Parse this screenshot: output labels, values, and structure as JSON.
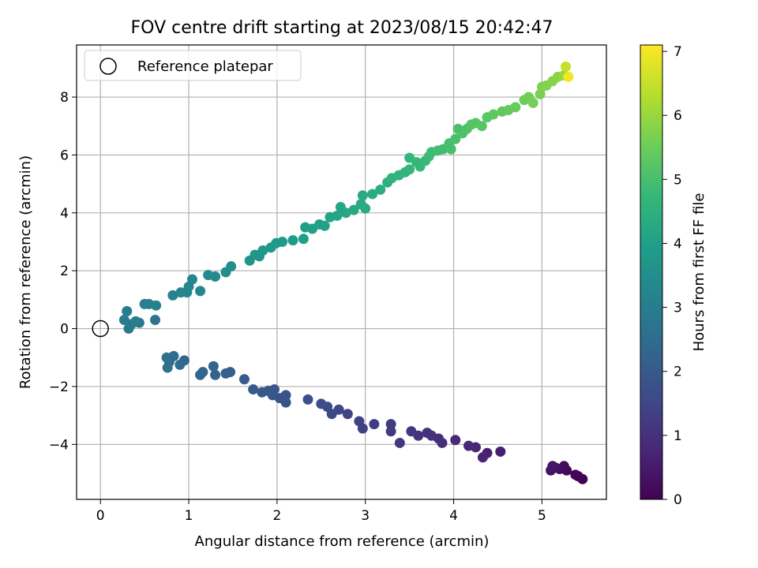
{
  "chart_data": {
    "type": "scatter",
    "title": "FOV centre drift starting at 2023/08/15 20:42:47",
    "xlabel": "Angular distance from reference (arcmin)",
    "ylabel": "Rotation from reference (arcmin)",
    "xlim": [
      -0.27,
      5.73
    ],
    "ylim": [
      -5.9,
      9.8
    ],
    "xticks": [
      0,
      1,
      2,
      3,
      4,
      5
    ],
    "yticks": [
      -4,
      -2,
      0,
      2,
      4,
      6,
      8
    ],
    "grid": true,
    "legend": {
      "placement": "top-left",
      "entries": [
        "Reference platepar"
      ]
    },
    "reference_point": {
      "x": 0,
      "y": 0
    },
    "colorbar": {
      "label": "Hours from first FF file",
      "min": 0,
      "max": 7.1,
      "ticks": [
        0,
        1,
        2,
        3,
        4,
        5,
        6,
        7
      ],
      "colormap": "viridis"
    },
    "series": [
      {
        "points": [
          {
            "x": 5.46,
            "y": -5.2,
            "c": 0.0
          },
          {
            "x": 5.41,
            "y": -5.1,
            "c": 0.05
          },
          {
            "x": 5.38,
            "y": -5.05,
            "c": 0.1
          },
          {
            "x": 5.28,
            "y": -4.9,
            "c": 0.15
          },
          {
            "x": 5.25,
            "y": -4.75,
            "c": 0.2
          },
          {
            "x": 5.2,
            "y": -4.85,
            "c": 0.25
          },
          {
            "x": 5.15,
            "y": -4.8,
            "c": 0.3
          },
          {
            "x": 5.1,
            "y": -4.9,
            "c": 0.35
          },
          {
            "x": 5.12,
            "y": -4.75,
            "c": 0.4
          },
          {
            "x": 4.53,
            "y": -4.25,
            "c": 0.6
          },
          {
            "x": 4.38,
            "y": -4.3,
            "c": 0.65
          },
          {
            "x": 4.33,
            "y": -4.45,
            "c": 0.7
          },
          {
            "x": 4.25,
            "y": -4.1,
            "c": 0.75
          },
          {
            "x": 4.17,
            "y": -4.05,
            "c": 0.8
          },
          {
            "x": 4.02,
            "y": -3.85,
            "c": 0.85
          },
          {
            "x": 3.87,
            "y": -3.95,
            "c": 0.9
          },
          {
            "x": 3.83,
            "y": -3.8,
            "c": 0.95
          },
          {
            "x": 3.75,
            "y": -3.7,
            "c": 1.0
          },
          {
            "x": 3.7,
            "y": -3.6,
            "c": 1.02
          },
          {
            "x": 3.6,
            "y": -3.7,
            "c": 1.05
          },
          {
            "x": 3.52,
            "y": -3.55,
            "c": 1.1
          },
          {
            "x": 3.39,
            "y": -3.95,
            "c": 1.15
          },
          {
            "x": 3.29,
            "y": -3.55,
            "c": 1.2
          },
          {
            "x": 3.29,
            "y": -3.3,
            "c": 1.25
          },
          {
            "x": 3.1,
            "y": -3.3,
            "c": 1.3
          },
          {
            "x": 2.97,
            "y": -3.45,
            "c": 1.35
          },
          {
            "x": 2.93,
            "y": -3.2,
            "c": 1.4
          },
          {
            "x": 2.8,
            "y": -2.95,
            "c": 1.45
          },
          {
            "x": 2.7,
            "y": -2.8,
            "c": 1.5
          },
          {
            "x": 2.62,
            "y": -2.95,
            "c": 1.55
          },
          {
            "x": 2.57,
            "y": -2.7,
            "c": 1.6
          },
          {
            "x": 2.5,
            "y": -2.6,
            "c": 1.65
          },
          {
            "x": 2.35,
            "y": -2.45,
            "c": 1.7
          },
          {
            "x": 2.1,
            "y": -2.55,
            "c": 1.75
          },
          {
            "x": 2.1,
            "y": -2.3,
            "c": 1.8
          },
          {
            "x": 2.03,
            "y": -2.4,
            "c": 1.85
          },
          {
            "x": 1.95,
            "y": -2.3,
            "c": 1.88
          },
          {
            "x": 1.97,
            "y": -2.1,
            "c": 1.9
          },
          {
            "x": 1.9,
            "y": -2.15,
            "c": 1.92
          },
          {
            "x": 1.83,
            "y": -2.2,
            "c": 1.95
          },
          {
            "x": 1.73,
            "y": -2.1,
            "c": 2.0
          },
          {
            "x": 1.63,
            "y": -1.75,
            "c": 2.05
          },
          {
            "x": 1.47,
            "y": -1.5,
            "c": 2.1
          },
          {
            "x": 1.42,
            "y": -1.55,
            "c": 2.15
          },
          {
            "x": 1.3,
            "y": -1.6,
            "c": 2.2
          },
          {
            "x": 1.28,
            "y": -1.3,
            "c": 2.25
          },
          {
            "x": 1.16,
            "y": -1.5,
            "c": 2.3
          },
          {
            "x": 1.13,
            "y": -1.6,
            "c": 2.35
          },
          {
            "x": 0.95,
            "y": -1.1,
            "c": 2.4
          },
          {
            "x": 0.9,
            "y": -1.25,
            "c": 2.45
          },
          {
            "x": 0.83,
            "y": -0.95,
            "c": 2.5
          },
          {
            "x": 0.78,
            "y": -1.15,
            "c": 2.55
          },
          {
            "x": 0.76,
            "y": -1.35,
            "c": 2.6
          },
          {
            "x": 0.75,
            "y": -1.0,
            "c": 2.65
          },
          {
            "x": 0.62,
            "y": 0.3,
            "c": 2.8
          },
          {
            "x": 0.44,
            "y": 0.2,
            "c": 2.85
          },
          {
            "x": 0.35,
            "y": 0.15,
            "c": 2.9
          },
          {
            "x": 0.32,
            "y": 0.0,
            "c": 2.92
          },
          {
            "x": 0.27,
            "y": 0.3,
            "c": 2.95
          },
          {
            "x": 0.3,
            "y": 0.6,
            "c": 2.98
          },
          {
            "x": 0.4,
            "y": 0.25,
            "c": 3.0
          },
          {
            "x": 0.5,
            "y": 0.85,
            "c": 3.05
          },
          {
            "x": 0.55,
            "y": 0.85,
            "c": 3.08
          },
          {
            "x": 0.63,
            "y": 0.8,
            "c": 3.1
          },
          {
            "x": 0.82,
            "y": 1.15,
            "c": 3.15
          },
          {
            "x": 0.91,
            "y": 1.25,
            "c": 3.2
          },
          {
            "x": 0.98,
            "y": 1.25,
            "c": 3.22
          },
          {
            "x": 1.0,
            "y": 1.45,
            "c": 3.25
          },
          {
            "x": 1.04,
            "y": 1.7,
            "c": 3.28
          },
          {
            "x": 1.13,
            "y": 1.3,
            "c": 3.3
          },
          {
            "x": 1.22,
            "y": 1.85,
            "c": 3.35
          },
          {
            "x": 1.3,
            "y": 1.8,
            "c": 3.38
          },
          {
            "x": 1.42,
            "y": 1.95,
            "c": 3.45
          },
          {
            "x": 1.48,
            "y": 2.15,
            "c": 3.5
          },
          {
            "x": 1.69,
            "y": 2.35,
            "c": 3.6
          },
          {
            "x": 1.75,
            "y": 2.55,
            "c": 3.65
          },
          {
            "x": 1.8,
            "y": 2.5,
            "c": 3.7
          },
          {
            "x": 1.84,
            "y": 2.7,
            "c": 3.72
          },
          {
            "x": 1.93,
            "y": 2.8,
            "c": 3.78
          },
          {
            "x": 1.99,
            "y": 2.95,
            "c": 3.82
          },
          {
            "x": 2.06,
            "y": 3.0,
            "c": 3.85
          },
          {
            "x": 2.18,
            "y": 3.05,
            "c": 3.9
          },
          {
            "x": 2.3,
            "y": 3.1,
            "c": 3.95
          },
          {
            "x": 2.32,
            "y": 3.5,
            "c": 3.98
          },
          {
            "x": 2.4,
            "y": 3.45,
            "c": 4.0
          },
          {
            "x": 2.48,
            "y": 3.6,
            "c": 4.05
          },
          {
            "x": 2.54,
            "y": 3.55,
            "c": 4.08
          },
          {
            "x": 2.6,
            "y": 3.85,
            "c": 4.12
          },
          {
            "x": 2.68,
            "y": 3.9,
            "c": 4.15
          },
          {
            "x": 2.72,
            "y": 4.2,
            "c": 4.18
          },
          {
            "x": 2.78,
            "y": 4.0,
            "c": 4.22
          },
          {
            "x": 2.87,
            "y": 4.1,
            "c": 4.25
          },
          {
            "x": 2.95,
            "y": 4.3,
            "c": 4.3
          },
          {
            "x": 2.97,
            "y": 4.6,
            "c": 4.33
          },
          {
            "x": 3.0,
            "y": 4.15,
            "c": 4.35
          },
          {
            "x": 3.08,
            "y": 4.65,
            "c": 4.4
          },
          {
            "x": 3.17,
            "y": 4.8,
            "c": 4.45
          },
          {
            "x": 3.25,
            "y": 5.05,
            "c": 4.5
          },
          {
            "x": 3.3,
            "y": 5.2,
            "c": 4.55
          },
          {
            "x": 3.38,
            "y": 5.3,
            "c": 4.6
          },
          {
            "x": 3.45,
            "y": 5.4,
            "c": 4.65
          },
          {
            "x": 3.5,
            "y": 5.5,
            "c": 4.68
          },
          {
            "x": 3.5,
            "y": 5.9,
            "c": 4.7
          },
          {
            "x": 3.58,
            "y": 5.75,
            "c": 4.73
          },
          {
            "x": 3.62,
            "y": 5.6,
            "c": 4.75
          },
          {
            "x": 3.68,
            "y": 5.8,
            "c": 4.8
          },
          {
            "x": 3.72,
            "y": 5.95,
            "c": 4.83
          },
          {
            "x": 3.75,
            "y": 6.1,
            "c": 4.86
          },
          {
            "x": 3.82,
            "y": 6.15,
            "c": 4.9
          },
          {
            "x": 3.88,
            "y": 6.2,
            "c": 4.93
          },
          {
            "x": 3.95,
            "y": 6.4,
            "c": 4.97
          },
          {
            "x": 3.97,
            "y": 6.2,
            "c": 5.0
          },
          {
            "x": 4.02,
            "y": 6.55,
            "c": 5.03
          },
          {
            "x": 4.05,
            "y": 6.9,
            "c": 5.06
          },
          {
            "x": 4.1,
            "y": 6.75,
            "c": 5.1
          },
          {
            "x": 4.15,
            "y": 6.9,
            "c": 5.13
          },
          {
            "x": 4.2,
            "y": 7.05,
            "c": 5.16
          },
          {
            "x": 4.25,
            "y": 7.1,
            "c": 5.2
          },
          {
            "x": 4.32,
            "y": 7.0,
            "c": 5.23
          },
          {
            "x": 4.38,
            "y": 7.3,
            "c": 5.26
          },
          {
            "x": 4.45,
            "y": 7.4,
            "c": 5.3
          },
          {
            "x": 4.55,
            "y": 7.5,
            "c": 5.35
          },
          {
            "x": 4.62,
            "y": 7.55,
            "c": 5.4
          },
          {
            "x": 4.7,
            "y": 7.65,
            "c": 5.45
          },
          {
            "x": 4.8,
            "y": 7.9,
            "c": 5.5
          },
          {
            "x": 4.85,
            "y": 8.0,
            "c": 5.55
          },
          {
            "x": 4.9,
            "y": 7.8,
            "c": 5.6
          },
          {
            "x": 4.98,
            "y": 8.1,
            "c": 5.65
          },
          {
            "x": 5.0,
            "y": 8.35,
            "c": 5.7
          },
          {
            "x": 5.05,
            "y": 8.4,
            "c": 5.75
          },
          {
            "x": 5.12,
            "y": 8.55,
            "c": 5.8
          },
          {
            "x": 5.18,
            "y": 8.7,
            "c": 5.85
          },
          {
            "x": 5.25,
            "y": 8.75,
            "c": 6.0
          },
          {
            "x": 5.27,
            "y": 9.05,
            "c": 6.5
          },
          {
            "x": 5.3,
            "y": 8.7,
            "c": 7.0
          }
        ]
      }
    ]
  }
}
